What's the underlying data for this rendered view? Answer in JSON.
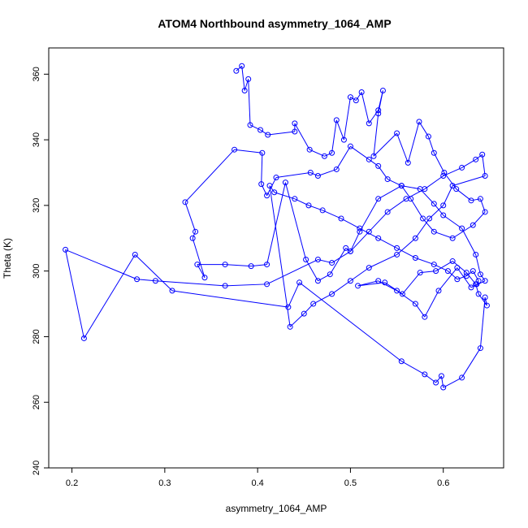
{
  "chart_data": {
    "type": "line",
    "title": "ATOM4 Northbound asymmetry_1064_AMP",
    "xlabel": "asymmetry_1064_AMP",
    "ylabel": "Theta (K)",
    "xlim": [
      0.175,
      0.665
    ],
    "ylim": [
      240,
      368
    ],
    "x_ticks": [
      "0.2",
      "0.3",
      "0.4",
      "0.5",
      "0.6"
    ],
    "y_ticks": [
      "240",
      "260",
      "280",
      "300",
      "320",
      "340",
      "360"
    ],
    "grid": false,
    "legend": "none",
    "markers": "open circles joined by lines",
    "series_color": "#0000ff",
    "x": [
      0.377,
      0.383,
      0.386,
      0.39,
      0.392,
      0.403,
      0.411,
      0.44,
      0.44,
      0.456,
      0.472,
      0.48,
      0.485,
      0.493,
      0.5,
      0.506,
      0.512,
      0.52,
      0.53,
      0.535,
      0.53,
      0.525,
      0.55,
      0.562,
      0.574,
      0.584,
      0.59,
      0.601,
      0.614,
      0.63,
      0.64,
      0.645,
      0.632,
      0.61,
      0.59,
      0.578,
      0.565,
      0.555,
      0.54,
      0.53,
      0.52,
      0.5,
      0.485,
      0.465,
      0.457,
      0.42,
      0.41,
      0.404,
      0.405,
      0.375,
      0.322,
      0.333,
      0.33,
      0.343,
      0.335,
      0.365,
      0.393,
      0.41,
      0.43,
      0.452,
      0.465,
      0.478,
      0.495,
      0.5,
      0.51,
      0.53,
      0.555,
      0.575,
      0.59,
      0.6,
      0.62,
      0.635,
      0.64,
      0.645,
      0.63,
      0.615,
      0.595,
      0.58,
      0.57,
      0.55,
      0.53,
      0.508,
      0.537,
      0.556,
      0.575,
      0.592,
      0.61,
      0.625,
      0.635,
      0.638,
      0.647,
      0.645,
      0.64,
      0.62,
      0.6,
      0.598,
      0.592,
      0.58,
      0.555,
      0.445,
      0.433,
      0.308,
      0.268,
      0.213,
      0.193,
      0.27,
      0.29,
      0.365,
      0.41,
      0.465,
      0.48,
      0.5,
      0.52,
      0.54,
      0.56,
      0.58,
      0.6,
      0.62,
      0.635,
      0.642,
      0.645,
      0.61,
      0.6,
      0.585,
      0.57,
      0.55,
      0.52,
      0.5,
      0.48,
      0.46,
      0.45,
      0.435,
      0.413,
      0.418,
      0.44,
      0.455,
      0.47,
      0.49,
      0.51,
      0.53,
      0.55,
      0.57,
      0.59,
      0.605,
      0.615,
      0.625,
      0.632,
      0.638,
      0.636
    ],
    "y": [
      361,
      362.5,
      355,
      358.5,
      344.5,
      343,
      341.5,
      342.5,
      345,
      337,
      335,
      336,
      346,
      340,
      353,
      352,
      354.5,
      345,
      349,
      355,
      348,
      335,
      342,
      333,
      345.5,
      341,
      336,
      330,
      325,
      321.5,
      322,
      318,
      314,
      310,
      312,
      316,
      322,
      326,
      328,
      332,
      334,
      338,
      331,
      329,
      330,
      328.5,
      323,
      326.5,
      336,
      337,
      321,
      312,
      310,
      298,
      302,
      302,
      301.5,
      302,
      327,
      303.5,
      297,
      299,
      307,
      306,
      312,
      322,
      326,
      325,
      320.5,
      317,
      313,
      305,
      299,
      297,
      295,
      301,
      294,
      286,
      290,
      294,
      297,
      295.5,
      296.5,
      293,
      299.5,
      300,
      303,
      299.5,
      296,
      293,
      289.5,
      292,
      276.5,
      267.5,
      264.5,
      268,
      266,
      268.5,
      272.5,
      296.5,
      289,
      294,
      305,
      279.5,
      306.5,
      297.5,
      297,
      295.5,
      296,
      303.5,
      302.5,
      306,
      312,
      318,
      322,
      325,
      329,
      331.5,
      334,
      335.5,
      329,
      326,
      320,
      316,
      310,
      305,
      301,
      297,
      293,
      290,
      287,
      283,
      326,
      324,
      322,
      320,
      318.5,
      316,
      313,
      310,
      307,
      304,
      302,
      300,
      297.5,
      298.5,
      300,
      297,
      296
    ]
  }
}
